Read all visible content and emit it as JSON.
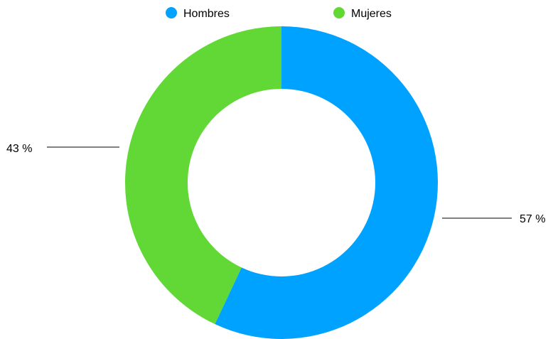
{
  "chart_data": {
    "type": "pie",
    "variant": "donut",
    "categories": [
      "Hombres",
      "Mujeres"
    ],
    "values": [
      57,
      43
    ],
    "colors": [
      "#00A2FF",
      "#61D836"
    ],
    "labels": [
      "57 %",
      "43 %"
    ],
    "legend": {
      "placement": "top",
      "entries": [
        "Hombres",
        "Mujeres"
      ]
    },
    "title": ""
  }
}
